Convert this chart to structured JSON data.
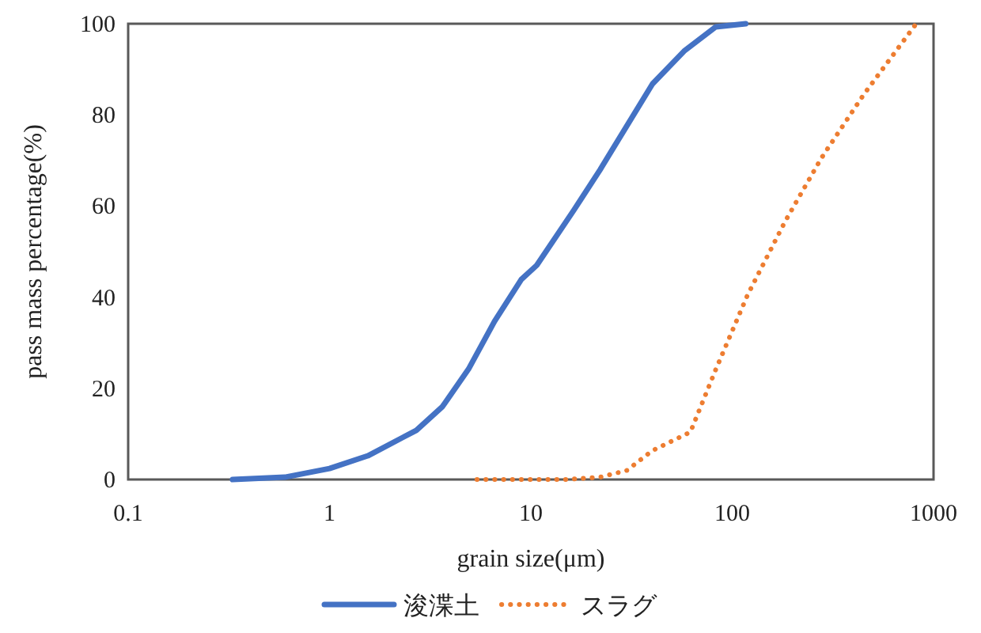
{
  "chart_data": {
    "type": "line",
    "xlabel": "grain size(μm)",
    "ylabel": "pass mass percentage(%)",
    "log": "x",
    "xlim": [
      0.1,
      1000
    ],
    "xticks": [
      0.1,
      1,
      10,
      100,
      1000
    ],
    "ylim": [
      0,
      100
    ],
    "yticks": [
      0,
      20,
      40,
      60,
      80,
      100
    ],
    "grid": false,
    "legend": "bottom",
    "series": [
      {
        "name": "浚渫土",
        "color": "#4472c4",
        "line_style": "solid",
        "x": [
          0.33,
          0.6,
          1,
          1.55,
          2.7,
          3.64,
          4.9,
          6.6,
          8.97,
          10.7,
          16.3,
          22.1,
          40.2,
          57.7,
          82.8,
          116.7
        ],
        "values": [
          0,
          0.5,
          2.4,
          5.2,
          10.8,
          16,
          24.2,
          34.7,
          43.9,
          47,
          59,
          68,
          86.8,
          94,
          99.3,
          100
        ]
      },
      {
        "name": "スラグ",
        "color": "#ed7d31",
        "line_style": "dotted",
        "x": [
          5.4,
          15,
          22,
          30,
          40,
          62,
          83,
          119,
          183,
          277,
          449,
          820
        ],
        "values": [
          0,
          0,
          0.5,
          2,
          6.3,
          10.4,
          24.2,
          40.4,
          56.6,
          70.5,
          84.4,
          100
        ]
      }
    ]
  }
}
